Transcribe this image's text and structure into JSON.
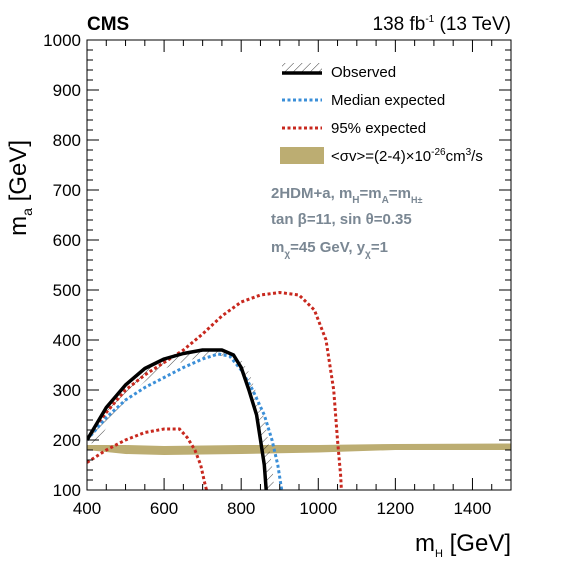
{
  "header": {
    "experiment": "CMS",
    "lumi_value": "138 fb",
    "lumi_exp": "-1",
    "energy": " (13 TeV)"
  },
  "chart_data": {
    "type": "line",
    "xlabel": {
      "symbol": "m",
      "sub": "H",
      "unit": " [GeV]"
    },
    "ylabel": {
      "symbol": "m",
      "sub": "a",
      "unit": " [GeV]"
    },
    "xlim": [
      400,
      1500
    ],
    "ylim": [
      100,
      1000
    ],
    "x_ticks": [
      400,
      600,
      800,
      1000,
      1200,
      1400
    ],
    "y_ticks": [
      100,
      200,
      300,
      400,
      500,
      600,
      700,
      800,
      900,
      1000
    ],
    "grid": false,
    "legend_position": "top-right",
    "legend": [
      {
        "key": "observed",
        "label": "Observed"
      },
      {
        "key": "median",
        "label": "Median expected"
      },
      {
        "key": "exp95",
        "label": "95% expected"
      },
      {
        "key": "relic",
        "label": "<σv>=(2-4)×10",
        "label_exp": "-26",
        "label_tail": "cm",
        "label_tail_exp": "3",
        "label_end": "/s"
      }
    ],
    "model_text": {
      "line1": {
        "a": "2HDM+a, m",
        "s1": "H",
        "b": "=m",
        "s2": "A",
        "c": "=m",
        "s3": "H±"
      },
      "line2": "tan  β=11, sin  θ=0.35",
      "line3": {
        "a": "m",
        "s1": "χ",
        "b": "=45 GeV, y",
        "s2": "χ",
        "c": "=1"
      }
    },
    "colors": {
      "observed": "#000000",
      "median": "#3b8fd8",
      "exp95": "#c8281e",
      "relic": "#bcad72",
      "model_text": "#7a8793"
    },
    "series": [
      {
        "name": "Observed",
        "points": [
          [
            400,
            200
          ],
          [
            450,
            265
          ],
          [
            500,
            310
          ],
          [
            550,
            343
          ],
          [
            600,
            362
          ],
          [
            650,
            373
          ],
          [
            700,
            380
          ],
          [
            750,
            380
          ],
          [
            780,
            370
          ],
          [
            800,
            345
          ],
          [
            820,
            300
          ],
          [
            840,
            250
          ],
          [
            850,
            200
          ],
          [
            860,
            150
          ],
          [
            865,
            100
          ]
        ]
      },
      {
        "name": "Median expected",
        "points": [
          [
            400,
            200
          ],
          [
            450,
            245
          ],
          [
            500,
            280
          ],
          [
            550,
            305
          ],
          [
            600,
            325
          ],
          [
            650,
            345
          ],
          [
            700,
            362
          ],
          [
            740,
            372
          ],
          [
            770,
            368
          ],
          [
            800,
            340
          ],
          [
            830,
            300
          ],
          [
            860,
            250
          ],
          [
            880,
            200
          ],
          [
            895,
            150
          ],
          [
            905,
            100
          ]
        ]
      },
      {
        "name": "95% expected (upper)",
        "points": [
          [
            400,
            200
          ],
          [
            450,
            255
          ],
          [
            500,
            300
          ],
          [
            550,
            330
          ],
          [
            600,
            355
          ],
          [
            650,
            380
          ],
          [
            700,
            412
          ],
          [
            750,
            448
          ],
          [
            800,
            476
          ],
          [
            850,
            490
          ],
          [
            900,
            495
          ],
          [
            950,
            490
          ],
          [
            990,
            460
          ],
          [
            1020,
            400
          ],
          [
            1040,
            300
          ],
          [
            1050,
            200
          ],
          [
            1058,
            130
          ],
          [
            1060,
            100
          ]
        ]
      },
      {
        "name": "95% expected (lower)",
        "points": [
          [
            400,
            155
          ],
          [
            450,
            180
          ],
          [
            500,
            200
          ],
          [
            550,
            215
          ],
          [
            600,
            222
          ],
          [
            640,
            222
          ],
          [
            660,
            205
          ],
          [
            680,
            180
          ],
          [
            695,
            150
          ],
          [
            705,
            115
          ],
          [
            710,
            100
          ]
        ]
      },
      {
        "name": "<σv>=(2-4)×10-26cm3/s",
        "upper": [
          [
            400,
            190
          ],
          [
            500,
            190
          ],
          [
            600,
            188
          ],
          [
            800,
            190
          ],
          [
            1000,
            190
          ],
          [
            1200,
            192
          ],
          [
            1500,
            193
          ]
        ],
        "lower": [
          [
            400,
            180
          ],
          [
            500,
            172
          ],
          [
            600,
            170
          ],
          [
            800,
            172
          ],
          [
            1000,
            175
          ],
          [
            1200,
            180
          ],
          [
            1500,
            180
          ]
        ]
      }
    ]
  }
}
